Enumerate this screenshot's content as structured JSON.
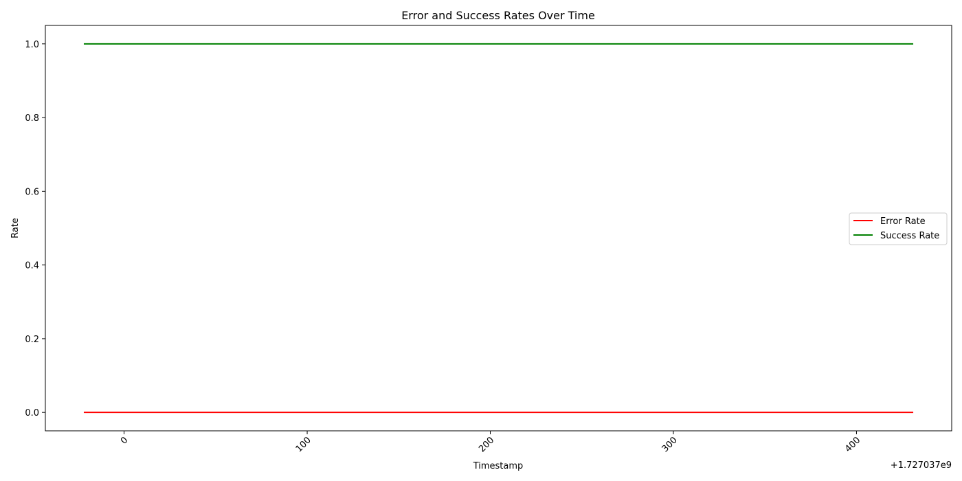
{
  "chart_data": {
    "type": "line",
    "title": "Error and Success Rates Over Time",
    "xlabel": "Timestamp",
    "ylabel": "Rate",
    "x_offset_label": "+1.727037e9",
    "x_ticks": [
      0,
      100,
      200,
      300,
      400
    ],
    "x_tick_labels": [
      "0",
      "100",
      "200",
      "300",
      "400"
    ],
    "y_ticks": [
      0.0,
      0.2,
      0.4,
      0.6,
      0.8,
      1.0
    ],
    "y_tick_labels": [
      "0.0",
      "0.2",
      "0.4",
      "0.6",
      "0.8",
      "1.0"
    ],
    "xlim": [
      -43,
      452
    ],
    "ylim": [
      -0.05,
      1.05
    ],
    "grid": false,
    "legend_position": "center-right",
    "series": [
      {
        "name": "Error Rate",
        "color": "#ff0000",
        "x": [
          -22,
          431
        ],
        "y": [
          0,
          0
        ]
      },
      {
        "name": "Success Rate",
        "color": "#008000",
        "x": [
          -22,
          431
        ],
        "y": [
          1,
          1
        ]
      }
    ]
  }
}
